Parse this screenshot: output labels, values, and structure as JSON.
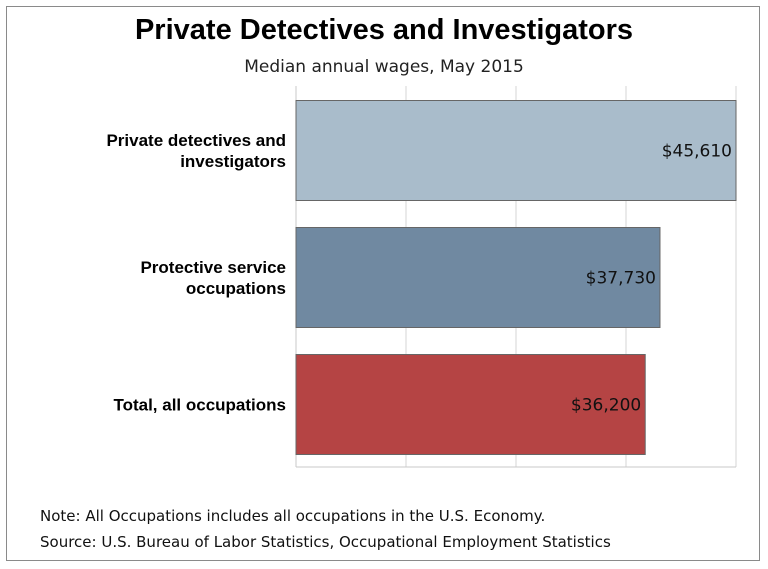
{
  "chart_data": {
    "type": "bar",
    "orientation": "horizontal",
    "title": "Private Detectives and Investigators",
    "subtitle": "Median annual wages, May 2015",
    "categories": [
      [
        "Private detectives and",
        "investigators"
      ],
      [
        "Protective service",
        "occupations"
      ],
      [
        "Total, all occupations"
      ]
    ],
    "values": [
      45610,
      37730,
      36200
    ],
    "value_labels": [
      "$45,610",
      "$37,730",
      "$36,200"
    ],
    "colors": [
      "#a9bccb",
      "#7089a1",
      "#b54444"
    ],
    "xlim": [
      0,
      45610
    ],
    "xticks": [
      0,
      11402.5,
      22805,
      34207.5,
      45610
    ],
    "grid": true,
    "legend": "none"
  },
  "notes": {
    "note": "Note: All Occupations includes all occupations in the U.S. Economy.",
    "source": "Source: U.S. Bureau of Labor Statistics, Occupational Employment Statistics"
  }
}
